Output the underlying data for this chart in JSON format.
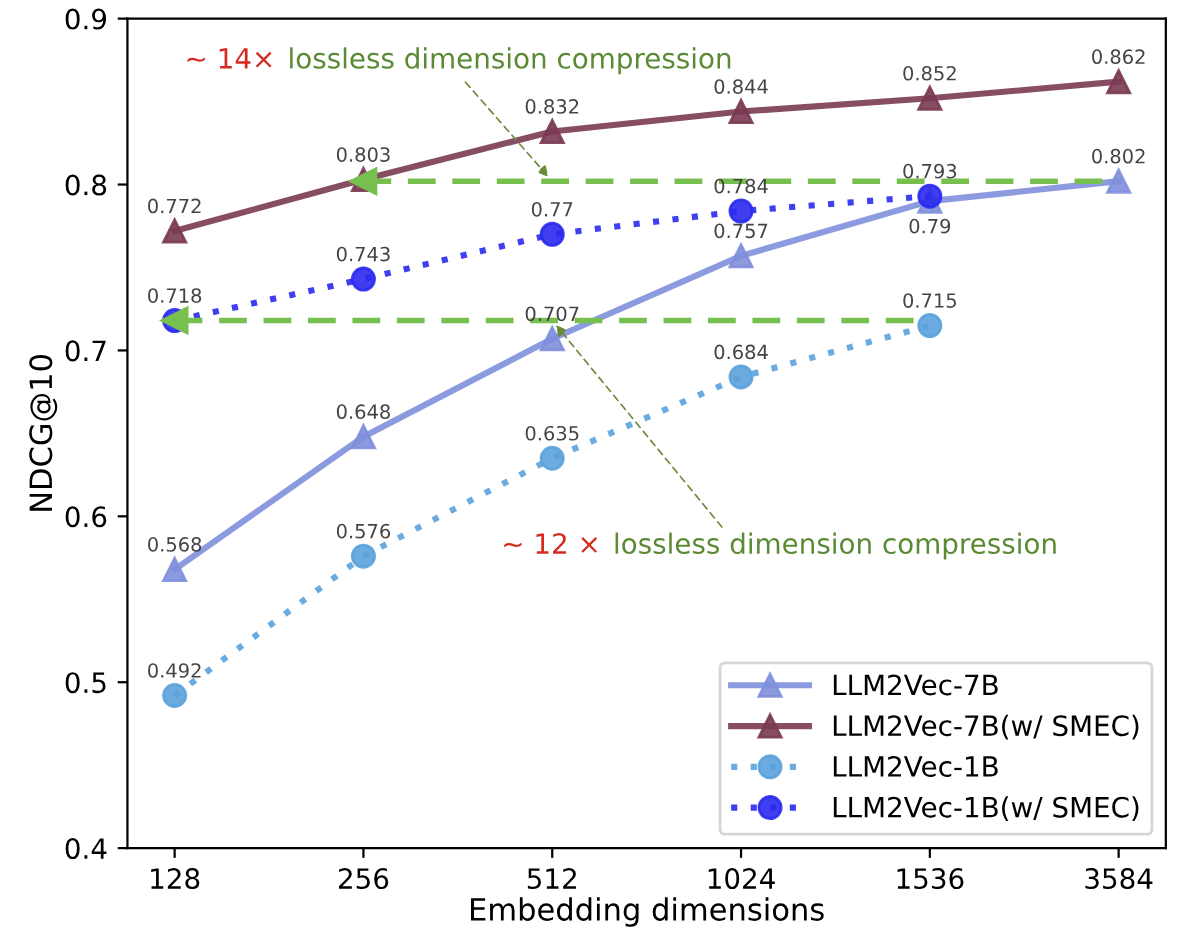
{
  "chart_data": {
    "type": "line",
    "xlabel": "Embedding dimensions",
    "ylabel": "NDCG@10",
    "categories": [
      "128",
      "256",
      "512",
      "1024",
      "1536",
      "3584"
    ],
    "ylim": [
      0.4,
      0.9
    ],
    "yticks": [
      0.4,
      0.5,
      0.6,
      0.7,
      0.8,
      0.9
    ],
    "grid": false,
    "legend": "bottom right",
    "series": [
      {
        "name": "LLM2Vec-7B",
        "color": "#7f8fdc",
        "marker": "triangle",
        "line_style": "solid",
        "values": [
          0.568,
          0.648,
          0.707,
          0.757,
          0.79,
          0.802
        ],
        "value_labels": [
          "0.568",
          "0.648",
          "0.707",
          "0.757",
          "0.79",
          "0.802"
        ]
      },
      {
        "name": "LLM2Vec-7B(w/ SMEC)",
        "color": "#7a3a52",
        "marker": "triangle",
        "line_style": "solid",
        "values": [
          0.772,
          0.803,
          0.832,
          0.844,
          0.852,
          0.862
        ],
        "value_labels": [
          "0.772",
          "0.803",
          "0.832",
          "0.844",
          "0.852",
          "0.862"
        ]
      },
      {
        "name": "LLM2Vec-1B",
        "color": "#5ba2dc",
        "marker": "circle",
        "line_style": "dotted",
        "values": [
          0.492,
          0.576,
          0.635,
          0.684,
          0.715,
          null
        ],
        "value_labels": [
          "0.492",
          "0.576",
          "0.635",
          "0.684",
          "0.715",
          null
        ]
      },
      {
        "name": "LLM2Vec-1B(w/ SMEC)",
        "color": "#2a2af0",
        "marker": "circle",
        "line_style": "dotted",
        "values": [
          0.718,
          0.743,
          0.77,
          0.784,
          0.793,
          null
        ],
        "value_labels": [
          "0.718",
          "0.743",
          "0.77",
          "0.784",
          "0.793",
          null
        ]
      },
      {
        "type": "line",
        "color": "#77c050",
        "line_style": "dashed",
        "values": [
          null,
          0.802,
          0.802,
          0.802,
          0.802,
          0.802
        ]
      },
      {
        "type": "line",
        "color": "#77c050",
        "line_style": "dashed",
        "values": [
          0.718,
          0.718,
          0.718,
          0.718,
          0.718,
          null
        ]
      }
    ],
    "annotations": [
      "~ 14×",
      {
        "text": "lossless dimension compression",
        "x": "512",
        "y": 0.802
      },
      "~ 12 ×",
      {
        "text": "lossless dimension compression",
        "x": "512",
        "y": 0.718
      }
    ]
  }
}
